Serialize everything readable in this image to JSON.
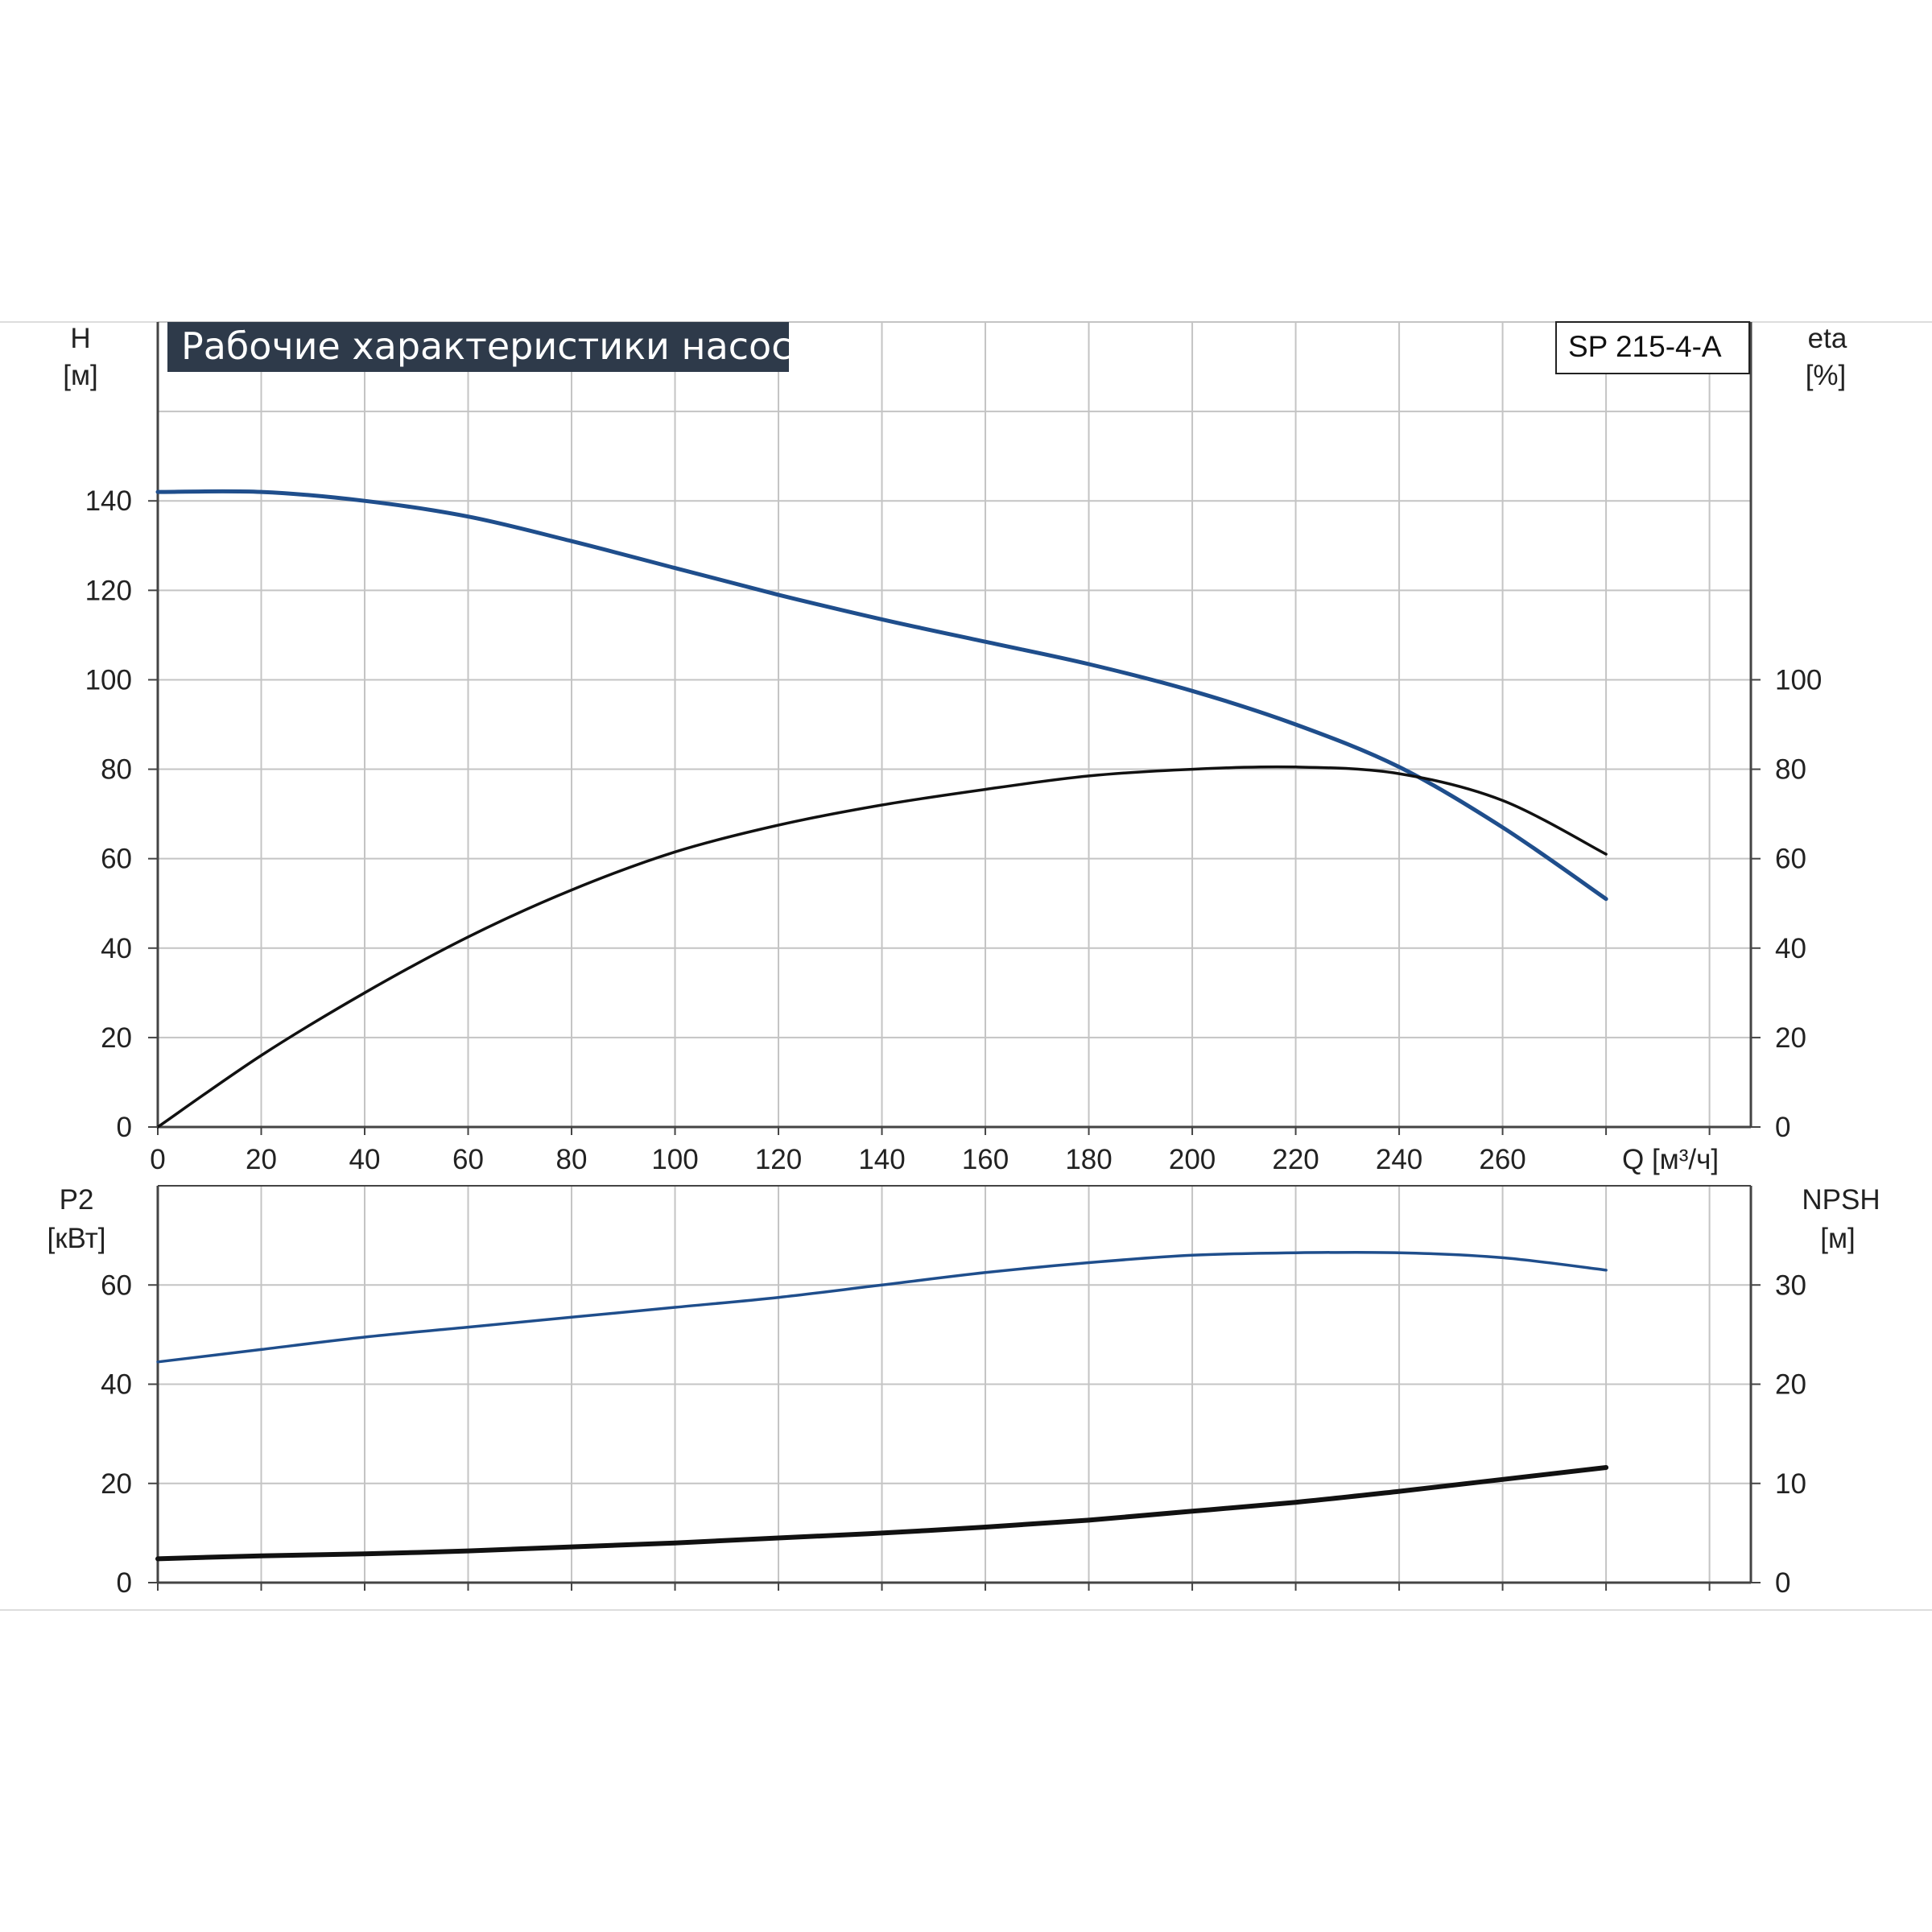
{
  "title": "Рабочие характеристики насоса",
  "model": "SP 215-4-A",
  "colors": {
    "blue": "#1f4e8c",
    "black": "#111111",
    "grid": "#c4c4c4",
    "title_bg": "#2e3a4a"
  },
  "chart_data": [
    {
      "type": "line",
      "name": "upper",
      "x_label": "Q [м³/ч]",
      "x_ticks": [
        "0",
        "20",
        "40",
        "60",
        "80",
        "100",
        "120",
        "140",
        "160",
        "180",
        "200",
        "220",
        "240",
        "260"
      ],
      "xlim": [
        0,
        308
      ],
      "y_left_label": {
        "line1": "H",
        "line2": "[м]"
      },
      "y_left_ticks": [
        "0",
        "20",
        "40",
        "60",
        "80",
        "100",
        "120",
        "140"
      ],
      "y_left_lim": [
        0,
        180
      ],
      "y_right_label": {
        "line1": "eta",
        "line2": "[%]"
      },
      "y_right_ticks": [
        "0",
        "20",
        "40",
        "60",
        "80",
        "100"
      ],
      "y_right_lim": [
        0,
        180
      ],
      "grid": true,
      "series": [
        {
          "axis": "left",
          "color": "blue",
          "x": [
            0,
            20,
            40,
            60,
            80,
            100,
            120,
            140,
            160,
            180,
            200,
            220,
            240,
            260,
            280
          ],
          "y": [
            142,
            142,
            140,
            136.5,
            131,
            125,
            119,
            113.5,
            108.5,
            103.5,
            97.5,
            90,
            80.5,
            67,
            51
          ]
        },
        {
          "axis": "right",
          "color": "black",
          "x": [
            0,
            20,
            40,
            60,
            80,
            100,
            120,
            140,
            160,
            180,
            200,
            220,
            240,
            260,
            280
          ],
          "y": [
            0,
            16,
            30,
            42.5,
            53,
            61.5,
            67.5,
            72,
            75.5,
            78.5,
            80,
            80.5,
            79,
            73,
            61
          ]
        }
      ]
    },
    {
      "type": "line",
      "name": "lower",
      "x_ticks": [],
      "xlim": [
        0,
        308
      ],
      "y_left_label": {
        "line1": "P2",
        "line2": "[кВт]"
      },
      "y_left_ticks": [
        "0",
        "20",
        "40",
        "60"
      ],
      "y_left_lim": [
        0,
        80
      ],
      "y_right_label": {
        "line1": "NPSH",
        "line2": "[м]"
      },
      "y_right_ticks": [
        "0",
        "10",
        "20",
        "30"
      ],
      "y_right_lim": [
        0,
        40
      ],
      "grid": true,
      "series": [
        {
          "axis": "left",
          "color": "blue",
          "x": [
            0,
            20,
            40,
            60,
            80,
            100,
            120,
            140,
            160,
            180,
            200,
            220,
            240,
            260,
            280
          ],
          "y": [
            44.5,
            47,
            49.5,
            51.5,
            53.5,
            55.5,
            57.5,
            60,
            62.5,
            64.5,
            66,
            66.5,
            66.5,
            65.5,
            63
          ]
        },
        {
          "axis": "right",
          "color": "black",
          "x": [
            0,
            20,
            40,
            60,
            80,
            100,
            120,
            140,
            160,
            180,
            200,
            220,
            240,
            260,
            280
          ],
          "y": [
            2.4,
            2.7,
            2.9,
            3.2,
            3.6,
            4.0,
            4.5,
            5.0,
            5.6,
            6.3,
            7.2,
            8.1,
            9.2,
            10.4,
            11.6
          ]
        }
      ]
    }
  ]
}
